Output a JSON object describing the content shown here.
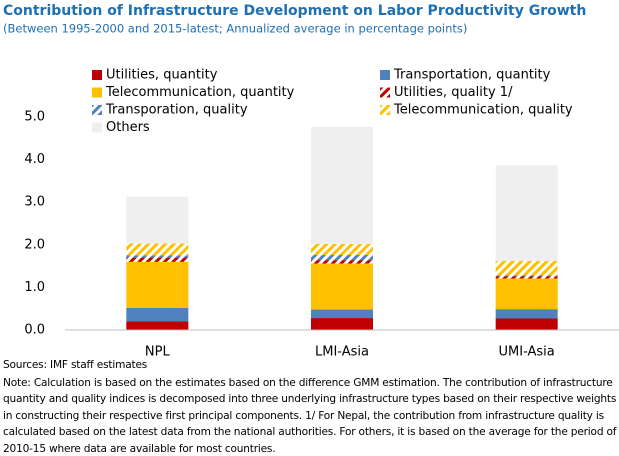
{
  "chart_data": {
    "type": "bar",
    "stacked": true,
    "title": "Contribution of Infrastructure Development on Labor Productivity Growth",
    "subtitle": "(Between 1995-2000  and 2015-latest;  Annualized average in percentage points)",
    "categories": [
      "NPL",
      "LMI-Asia",
      "UMI-Asia"
    ],
    "series": [
      {
        "name": "Utilities, quantity",
        "color": "#c00000",
        "hatched": false,
        "values": [
          0.2,
          0.28,
          0.27
        ]
      },
      {
        "name": "Transportation, quantity",
        "color": "#4f81bd",
        "hatched": false,
        "values": [
          0.32,
          0.2,
          0.22
        ]
      },
      {
        "name": "Telecommunication, quantity",
        "color": "#ffc000",
        "hatched": false,
        "values": [
          1.08,
          1.08,
          0.72
        ]
      },
      {
        "name": "Utilities, quality 1/",
        "color": "#c00000",
        "hatched": true,
        "values": [
          0.1,
          0.08,
          0.05
        ]
      },
      {
        "name": "Transporation, quality",
        "color": "#4f81bd",
        "hatched": true,
        "values": [
          0.05,
          0.12,
          0.02
        ]
      },
      {
        "name": "Telecommunication, quality",
        "color": "#ffc000",
        "hatched": true,
        "values": [
          0.28,
          0.26,
          0.34
        ]
      },
      {
        "name": "Others",
        "color": "#efefef",
        "hatched": false,
        "values": [
          1.1,
          2.75,
          2.25
        ]
      }
    ],
    "ylim": [
      0,
      5
    ],
    "yticks": [
      {
        "value": 0,
        "label": "0.0"
      },
      {
        "value": 1,
        "label": "1.0"
      },
      {
        "value": 2,
        "label": "2.0"
      },
      {
        "value": 3,
        "label": "3.0"
      },
      {
        "value": 4,
        "label": "4.0"
      },
      {
        "value": 5,
        "label": "5.0"
      }
    ],
    "grid": false,
    "source": "Sources: IMF staff estimates",
    "note": "Note: Calculation is based on the estimates based on the difference GMM estimation. The contribution of infrastructure quantity and quality indices is decomposed into three underlying infrastructure types based on their respective weights in constructing their respective first principal components. 1/ For Nepal, the contribution from infrastructure quality is calculated based on the latest data from the national authorities. For others, it is based on the average for the period of 2010-15 where data are available for most countries."
  }
}
